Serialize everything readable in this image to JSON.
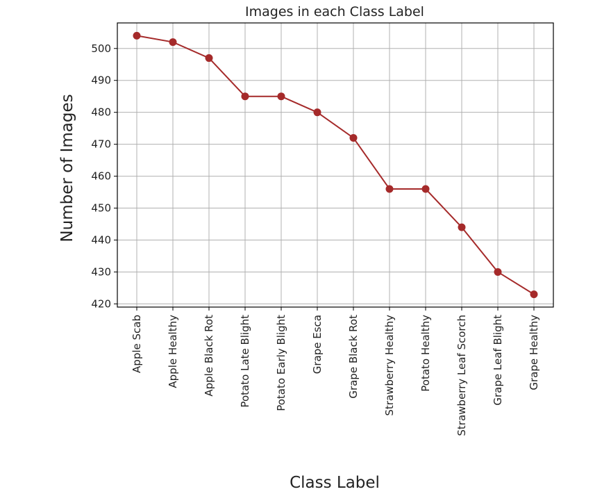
{
  "chart_data": {
    "type": "line",
    "title": "Images in each Class Label",
    "xlabel": "Class Label",
    "ylabel": "Number of Images",
    "categories": [
      "Apple Scab",
      "Apple Healthy",
      "Apple Black Rot",
      "Potato Late Blight",
      "Potato Early Blight",
      "Grape Esca",
      "Grape Black Rot",
      "Strawberry Healthy",
      "Potato Healthy",
      "Strawberry Leaf Scorch",
      "Grape Leaf Blight",
      "Grape Healthy"
    ],
    "series": [
      {
        "values": [
          504,
          502,
          497,
          485,
          485,
          480,
          472,
          456,
          456,
          444,
          430,
          423
        ],
        "color": "#a52a2a"
      }
    ],
    "yticks": [
      420,
      430,
      440,
      450,
      460,
      470,
      480,
      490,
      500
    ],
    "ylim": [
      419,
      508
    ],
    "grid": true,
    "legend": "none"
  }
}
